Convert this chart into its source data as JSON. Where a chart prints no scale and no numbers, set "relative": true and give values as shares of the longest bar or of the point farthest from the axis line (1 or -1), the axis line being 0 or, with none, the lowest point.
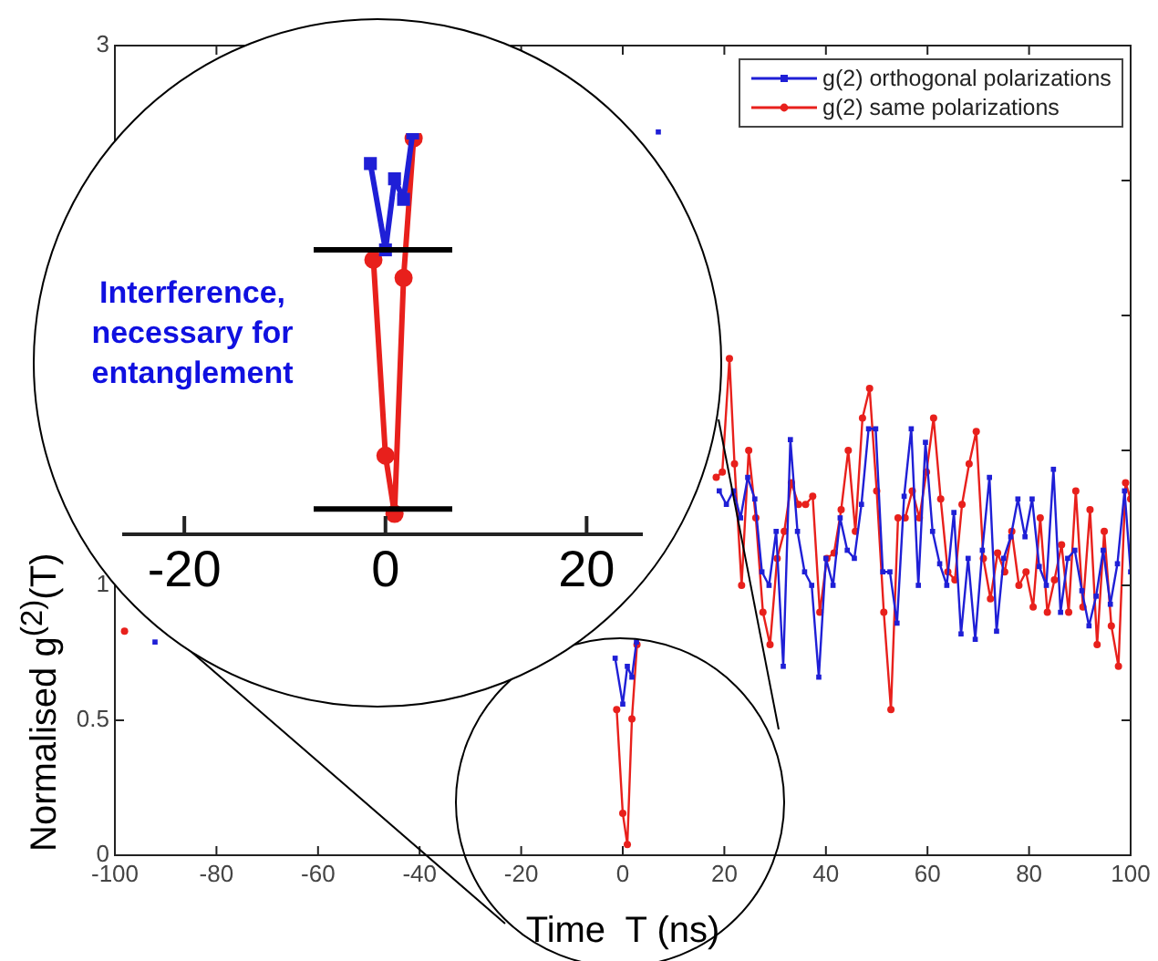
{
  "chart_data": [
    {
      "type": "line",
      "xlabel": "Time  T (ns)",
      "ylabel": "Normalised  g$^{(2)}$(T)",
      "xlim": [
        -100,
        100
      ],
      "xticks": [
        -100,
        -80,
        -60,
        -40,
        -20,
        0,
        20,
        40,
        60,
        80,
        100
      ],
      "ylim": [
        0,
        3
      ],
      "yticks": [
        0,
        0.5,
        1,
        {
          "value": 1.5,
          "label": null
        },
        {
          "value": 2,
          "label": null
        },
        {
          "value": 2.5,
          "label": null
        },
        3
      ],
      "grid": false,
      "legend": "top right",
      "series": [
        {
          "name": "g(2) orthogonal polarizations",
          "color": "#1f1fd6",
          "marker": "square",
          "x": [
            -92.1,
            -90,
            -1.5,
            0,
            0.9,
            1.8,
            2.7,
            4.5,
            7.0,
            9.0,
            19.0,
            20.4,
            21.8,
            23.2,
            24.6,
            26.0,
            27.4,
            28.8,
            30.2,
            31.6,
            33.0,
            34.4,
            35.8,
            37.2,
            38.6,
            40.0,
            41.4,
            42.8,
            44.2,
            45.6,
            47.0,
            48.4,
            49.8,
            51.2,
            52.6,
            54.0,
            55.4,
            56.8,
            58.2,
            59.6,
            61.0,
            62.4,
            63.8,
            65.2,
            66.6,
            68.0,
            69.4,
            70.8,
            72.2,
            73.6,
            75.0,
            76.4,
            77.8,
            79.2,
            80.6,
            82.0,
            83.4,
            84.8,
            86.2,
            87.6,
            89.0,
            90.4,
            91.8,
            93.2,
            94.6,
            96.0,
            97.4,
            98.8,
            100
          ],
          "values": [
            0.79,
            null,
            0.73,
            0.56,
            0.7,
            0.66,
            0.79,
            null,
            2.68,
            null,
            1.35,
            1.3,
            1.35,
            1.25,
            1.4,
            1.32,
            1.05,
            1.0,
            1.2,
            0.7,
            1.54,
            1.2,
            1.05,
            1.0,
            0.66,
            1.1,
            1.0,
            1.25,
            1.13,
            1.1,
            1.3,
            1.58,
            1.58,
            1.05,
            1.05,
            0.86,
            1.33,
            1.58,
            1.0,
            1.53,
            1.2,
            1.08,
            1.0,
            1.27,
            0.82,
            1.1,
            0.8,
            1.13,
            1.4,
            0.83,
            1.1,
            1.18,
            1.32,
            1.18,
            1.32,
            1.07,
            1.0,
            1.43,
            0.9,
            1.1,
            1.13,
            0.98,
            0.85,
            0.96,
            1.13,
            0.93,
            1.08,
            1.35,
            1.05
          ]
        },
        {
          "name": "g(2) same polarizations",
          "color": "#e8201c",
          "marker": "circle",
          "x": [
            -98.1,
            -96,
            -1.2,
            0,
            0.9,
            1.8,
            2.8,
            5,
            18.4,
            19.6,
            21.0,
            22.0,
            23.4,
            24.8,
            26.2,
            27.6,
            29.0,
            30.4,
            31.8,
            33.2,
            34.6,
            36.0,
            37.4,
            38.8,
            40.2,
            41.6,
            43.0,
            44.4,
            45.8,
            47.2,
            48.6,
            50.0,
            51.4,
            52.8,
            54.2,
            55.6,
            57.0,
            58.4,
            59.8,
            61.2,
            62.6,
            64.0,
            65.4,
            66.8,
            68.2,
            69.6,
            71.0,
            72.4,
            73.8,
            75.2,
            76.6,
            78.0,
            79.4,
            80.8,
            82.2,
            83.6,
            85.0,
            86.4,
            87.8,
            89.2,
            90.6,
            92.0,
            93.4,
            94.8,
            96.2,
            97.6,
            99.0,
            100
          ],
          "values": [
            0.83,
            null,
            0.54,
            0.155,
            0.04,
            0.505,
            0.78,
            null,
            1.4,
            1.42,
            1.84,
            1.45,
            1.0,
            1.5,
            1.25,
            0.9,
            0.78,
            1.1,
            1.2,
            1.38,
            1.3,
            1.3,
            1.33,
            0.9,
            1.1,
            1.12,
            1.28,
            1.5,
            1.2,
            1.62,
            1.73,
            1.35,
            0.9,
            0.54,
            1.25,
            1.25,
            1.35,
            1.25,
            1.42,
            1.62,
            1.32,
            1.05,
            1.02,
            1.3,
            1.45,
            1.57,
            1.1,
            0.95,
            1.12,
            1.05,
            1.2,
            1.0,
            1.05,
            0.92,
            1.25,
            0.9,
            1.02,
            1.15,
            0.9,
            1.35,
            0.92,
            1.28,
            0.78,
            1.2,
            0.85,
            0.7,
            1.38,
            1.32
          ]
        }
      ]
    },
    {
      "type": "line",
      "relative": true,
      "xlim": [
        -26,
        25.5
      ],
      "xticks": [
        -20,
        0,
        20
      ],
      "tick_labels": "x",
      "grid": false,
      "annotations": [
        "Interference, necessary for entanglement"
      ],
      "ref_lines": [
        {
          "axis": "y",
          "value": 0.063
        },
        {
          "axis": "y",
          "value": 0.709
        }
      ],
      "series": [
        {
          "color": "#1f1fd6",
          "marker": "square",
          "x": [
            -1.5,
            0,
            0.9,
            1.8,
            2.7
          ],
          "values": [
            0.924,
            0.709,
            0.886,
            0.835,
            1
          ]
        },
        {
          "color": "#e8201c",
          "marker": "circle",
          "x": [
            -1.2,
            0,
            0.9,
            1.8,
            2.8
          ],
          "values": [
            0.684,
            0.196,
            0.051,
            0.639,
            0.987
          ]
        }
      ]
    }
  ]
}
